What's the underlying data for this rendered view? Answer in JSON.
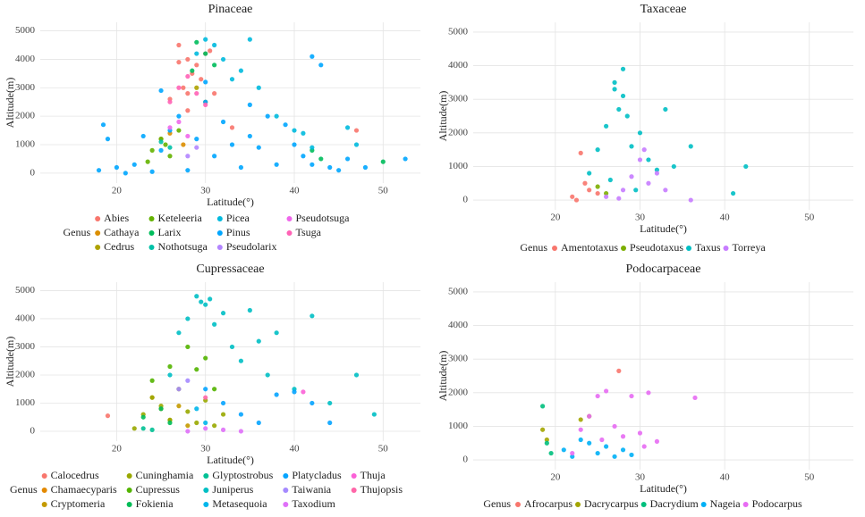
{
  "chart_data": [
    {
      "type": "scatter",
      "title": "Pinaceae",
      "x_label": "Latitude(°)",
      "y_label": "Altitude(m)",
      "legend_title": "Genus",
      "xlim": [
        11.4,
        54.2
      ],
      "ylim": [
        -350,
        5300
      ],
      "xticks": [
        20,
        30,
        40,
        50
      ],
      "yticks": [
        0,
        1000,
        2000,
        3000,
        4000,
        5000
      ],
      "grid": true,
      "series": [
        {
          "name": "Abies",
          "color": "#F8766D",
          "x": [
            27,
            28,
            28.5,
            29,
            27.5,
            30,
            26,
            28,
            29.5,
            31,
            33,
            47,
            27,
            28,
            30.5
          ],
          "values": [
            4500,
            4000,
            3500,
            3800,
            3000,
            4200,
            2600,
            2200,
            3300,
            2800,
            1600,
            1500,
            3900,
            2800,
            4300
          ]
        },
        {
          "name": "Cathaya",
          "color": "#DB8E00",
          "x": [
            25,
            26,
            27.5
          ],
          "values": [
            1200,
            1400,
            1000
          ]
        },
        {
          "name": "Cedrus",
          "color": "#AEA200",
          "x": [
            29,
            30
          ],
          "values": [
            3000,
            2500
          ]
        },
        {
          "name": "Keteleeria",
          "color": "#64B200",
          "x": [
            24,
            25,
            26,
            27,
            23.5,
            25.5
          ],
          "values": [
            800,
            1200,
            600,
            1500,
            400,
            1000
          ]
        },
        {
          "name": "Larix",
          "color": "#00BD5C",
          "x": [
            29,
            30,
            31,
            28.5,
            42,
            43,
            50
          ],
          "values": [
            4600,
            4200,
            3800,
            3600,
            800,
            500,
            400
          ]
        },
        {
          "name": "Nothotsuga",
          "color": "#00C1A7",
          "x": [
            26,
            25
          ],
          "values": [
            900,
            1100
          ]
        },
        {
          "name": "Picea",
          "color": "#00BADE",
          "x": [
            30,
            31,
            32,
            34,
            35,
            36,
            29,
            33,
            38,
            40,
            41,
            42,
            46,
            47
          ],
          "values": [
            4700,
            4500,
            4000,
            3600,
            4700,
            3000,
            4200,
            3300,
            2000,
            1500,
            1400,
            900,
            1600,
            1000
          ]
        },
        {
          "name": "Pinus",
          "color": "#00A6FF",
          "x": [
            18,
            18.5,
            19,
            20,
            21,
            22,
            23,
            24,
            25,
            26,
            27,
            28,
            29,
            30,
            31,
            32,
            33,
            34,
            35,
            36,
            37,
            38,
            39,
            40,
            41,
            42,
            43,
            44,
            45,
            46,
            48,
            52.5,
            42,
            35,
            25,
            30
          ],
          "values": [
            100,
            1700,
            1200,
            200,
            0,
            300,
            1300,
            50,
            800,
            1500,
            2000,
            100,
            1200,
            2500,
            600,
            1800,
            1000,
            200,
            1300,
            900,
            2000,
            300,
            1700,
            1000,
            600,
            300,
            3800,
            200,
            100,
            500,
            200,
            500,
            4100,
            2400,
            2900,
            3200
          ]
        },
        {
          "name": "Pseudolarix",
          "color": "#B385FF",
          "x": [
            28,
            29
          ],
          "values": [
            600,
            900
          ]
        },
        {
          "name": "Pseudotsuga",
          "color": "#EF67EB",
          "x": [
            26,
            27,
            28
          ],
          "values": [
            1600,
            1800,
            1300
          ]
        },
        {
          "name": "Tsuga",
          "color": "#FF63B6",
          "x": [
            27,
            28,
            29,
            30,
            26
          ],
          "values": [
            3000,
            3400,
            2800,
            2400,
            2500
          ]
        }
      ]
    },
    {
      "type": "scatter",
      "title": "Taxaceae",
      "x_label": "Latitude(°)",
      "y_label": "Altitude(m)",
      "legend_title": "Genus",
      "xlim": [
        10.3,
        55.2
      ],
      "ylim": [
        -290,
        5290
      ],
      "xticks": [
        20,
        30,
        40,
        50
      ],
      "yticks": [
        0,
        1000,
        2000,
        3000,
        4000,
        5000
      ],
      "grid": true,
      "series": [
        {
          "name": "Amentotaxus",
          "color": "#F8766D",
          "x": [
            22,
            23,
            23.5,
            24,
            22.5,
            25
          ],
          "values": [
            100,
            1400,
            500,
            300,
            0,
            200
          ]
        },
        {
          "name": "Pseudotaxus",
          "color": "#7CAE00",
          "x": [
            25,
            26
          ],
          "values": [
            400,
            200
          ]
        },
        {
          "name": "Taxus",
          "color": "#00BFC4",
          "x": [
            24,
            25,
            26,
            27,
            27.5,
            28,
            28.5,
            29,
            30,
            31,
            32,
            33,
            34,
            36,
            41,
            42.5,
            27,
            28,
            26.5,
            29.5
          ],
          "values": [
            800,
            1500,
            2200,
            3300,
            2700,
            3900,
            2500,
            1600,
            2000,
            1200,
            900,
            2700,
            1000,
            1600,
            200,
            1000,
            3500,
            3100,
            600,
            300
          ]
        },
        {
          "name": "Torreya",
          "color": "#C77CFF",
          "x": [
            26,
            28,
            29,
            30,
            31,
            32,
            33,
            36,
            30.5,
            27.5
          ],
          "values": [
            100,
            300,
            700,
            1200,
            500,
            800,
            300,
            0,
            1500,
            50
          ]
        }
      ]
    },
    {
      "type": "scatter",
      "title": "Cupressaceae",
      "x_label": "Latitude(°)",
      "y_label": "Altitude(m)",
      "legend_title": "Genus",
      "xlim": [
        11.4,
        54.2
      ],
      "ylim": [
        -350,
        5300
      ],
      "xticks": [
        20,
        30,
        40,
        50
      ],
      "yticks": [
        0,
        1000,
        2000,
        3000,
        4000,
        5000
      ],
      "grid": true,
      "series": [
        {
          "name": "Calocedrus",
          "color": "#F8766D",
          "x": [
            19
          ],
          "values": [
            550
          ]
        },
        {
          "name": "Chamaecyparis",
          "color": "#E38900",
          "x": [
            24,
            25
          ],
          "values": [
            1200,
            800
          ]
        },
        {
          "name": "Cryptomeria",
          "color": "#C49A00",
          "x": [
            26,
            27,
            28
          ],
          "values": [
            400,
            900,
            200
          ]
        },
        {
          "name": "Cuninghamia",
          "color": "#99A800",
          "x": [
            22,
            23,
            24,
            25,
            26,
            27,
            28,
            29,
            30,
            31,
            32
          ],
          "values": [
            100,
            600,
            1200,
            900,
            400,
            1500,
            700,
            300,
            1100,
            200,
            600
          ]
        },
        {
          "name": "Cupressus",
          "color": "#53B400",
          "x": [
            24,
            26,
            28,
            29,
            30,
            31
          ],
          "values": [
            1800,
            2300,
            3000,
            2200,
            2600,
            1500
          ]
        },
        {
          "name": "Fokienia",
          "color": "#00BC56",
          "x": [
            23,
            25,
            26
          ],
          "values": [
            500,
            800,
            300
          ]
        },
        {
          "name": "Glyptostrobus",
          "color": "#00C094",
          "x": [
            23,
            24
          ],
          "values": [
            100,
            50
          ]
        },
        {
          "name": "Juniperus",
          "color": "#00BFC4",
          "x": [
            26,
            27,
            28,
            29,
            30,
            31,
            32,
            33,
            34,
            35,
            36,
            37,
            38,
            40,
            42,
            44,
            47,
            49,
            29.5,
            30.5
          ],
          "values": [
            2000,
            3500,
            4000,
            4800,
            4500,
            3800,
            4200,
            3000,
            2500,
            4300,
            3200,
            2000,
            3500,
            1500,
            4100,
            1000,
            2000,
            600,
            4600,
            4700
          ]
        },
        {
          "name": "Metasequoia",
          "color": "#00B6EB",
          "x": [
            29,
            30
          ],
          "values": [
            800,
            300
          ]
        },
        {
          "name": "Platycladus",
          "color": "#06A4FF",
          "x": [
            30,
            32,
            34,
            36,
            38,
            40,
            42,
            44
          ],
          "values": [
            1500,
            1000,
            600,
            300,
            1300,
            1400,
            1000,
            300
          ]
        },
        {
          "name": "Taiwania",
          "color": "#A58AFF",
          "x": [
            27,
            28
          ],
          "values": [
            1500,
            1800
          ]
        },
        {
          "name": "Taxodium",
          "color": "#DF70F8",
          "x": [
            28,
            30,
            32,
            34
          ],
          "values": [
            0,
            100,
            50,
            0
          ]
        },
        {
          "name": "Thuja",
          "color": "#FB61D7",
          "x": [
            41
          ],
          "values": [
            1400
          ]
        },
        {
          "name": "Thujopsis",
          "color": "#FF66A8",
          "x": [
            30
          ],
          "values": [
            1200
          ]
        }
      ]
    },
    {
      "type": "scatter",
      "title": "Podocarpaceae",
      "x_label": "Latitude(°)",
      "y_label": "Altitude(m)",
      "legend_title": "Genus",
      "xlim": [
        10.3,
        55.2
      ],
      "ylim": [
        -290,
        5290
      ],
      "xticks": [
        20,
        30,
        40,
        50
      ],
      "yticks": [
        0,
        1000,
        2000,
        3000,
        4000,
        5000
      ],
      "grid": true,
      "series": [
        {
          "name": "Afrocarpus",
          "color": "#F8766D",
          "x": [
            27.5
          ],
          "values": [
            2650
          ]
        },
        {
          "name": "Dacrycarpus",
          "color": "#A3A500",
          "x": [
            18.5,
            19,
            23,
            24
          ],
          "values": [
            900,
            600,
            1200,
            1300
          ]
        },
        {
          "name": "Dacrydium",
          "color": "#00BF7D",
          "x": [
            18.5,
            19,
            19.5
          ],
          "values": [
            1600,
            500,
            200
          ]
        },
        {
          "name": "Nageia",
          "color": "#00B0F6",
          "x": [
            21,
            22,
            23,
            24,
            25,
            26,
            27,
            28,
            29
          ],
          "values": [
            300,
            100,
            600,
            500,
            200,
            400,
            100,
            300,
            150
          ]
        },
        {
          "name": "Podocarpus",
          "color": "#E76BF3",
          "x": [
            22,
            23,
            24,
            25,
            26,
            27,
            28,
            29,
            30,
            31,
            32,
            36.5,
            30.5,
            25.5
          ],
          "values": [
            200,
            900,
            1300,
            1900,
            2050,
            1000,
            700,
            1900,
            800,
            2000,
            550,
            1850,
            400,
            600
          ]
        }
      ]
    }
  ]
}
